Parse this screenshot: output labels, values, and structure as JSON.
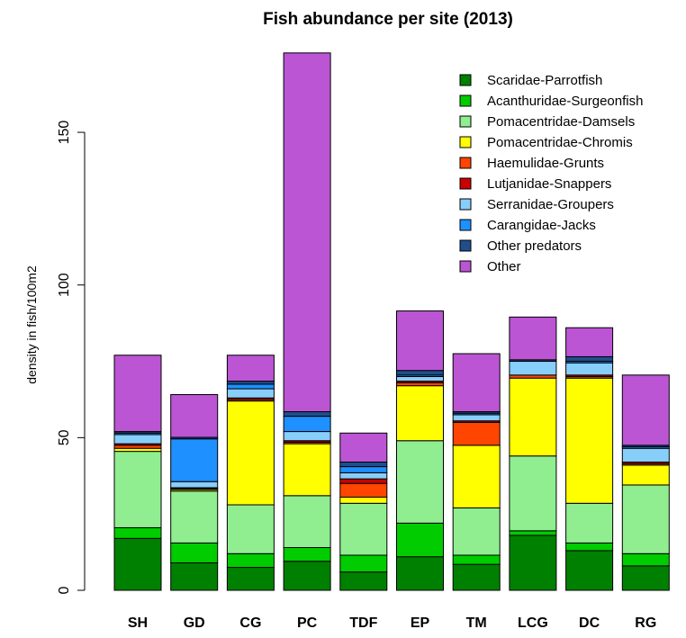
{
  "chart_data": {
    "type": "bar",
    "stacked": true,
    "title": "Fish abundance per site (2013)",
    "xlabel": "",
    "ylabel": "density in fish/100m2",
    "ylim": [
      0,
      180
    ],
    "yticks": [
      0,
      50,
      100,
      150
    ],
    "grid": false,
    "legend_position": "top-right",
    "categories": [
      "SH",
      "GD",
      "CG",
      "PC",
      "TDF",
      "EP",
      "TM",
      "LCG",
      "DC",
      "RG"
    ],
    "series": [
      {
        "name": "Scaridae-Parrotfish",
        "color": "#008000",
        "values": [
          17,
          9,
          7.5,
          9.5,
          6,
          11,
          8.5,
          18,
          13,
          8
        ]
      },
      {
        "name": "Acanthuridae-Surgeonfish",
        "color": "#00cc00",
        "values": [
          3.5,
          6.5,
          4.5,
          4.5,
          5.5,
          11,
          3,
          1.5,
          2.5,
          4
        ]
      },
      {
        "name": "Pomacentridae-Damsels",
        "color": "#90ee90",
        "values": [
          25,
          17,
          16,
          17,
          17,
          27,
          15.5,
          24.5,
          13,
          22.5
        ]
      },
      {
        "name": "Pomacentridae-Chromis",
        "color": "#ffff00",
        "values": [
          1,
          0.5,
          34,
          17,
          2,
          18,
          20.5,
          25.5,
          41,
          6.5
        ]
      },
      {
        "name": "Haemulidae-Grunts",
        "color": "#ff4500",
        "values": [
          1,
          0.3,
          0.5,
          0.5,
          4.5,
          1,
          7.5,
          1,
          0.5,
          0.5
        ]
      },
      {
        "name": "Lutjanidae-Snappers",
        "color": "#cc0000",
        "values": [
          0.5,
          0.3,
          0.5,
          0.5,
          1.5,
          0.5,
          0.5,
          0,
          0.5,
          0.5
        ]
      },
      {
        "name": "Serranidae-Groupers",
        "color": "#87cefa",
        "values": [
          3,
          2,
          3,
          3,
          2,
          1.5,
          2,
          4.5,
          4,
          4.5
        ]
      },
      {
        "name": "Carangidae-Jacks",
        "color": "#1e90ff",
        "values": [
          0.5,
          14,
          1.5,
          5,
          2,
          0.5,
          0.5,
          0,
          0.5,
          0.5
        ]
      },
      {
        "name": "Other predators",
        "color": "#1f4e8c",
        "values": [
          0.5,
          0.5,
          1,
          1.5,
          1.5,
          1.5,
          0.5,
          0.5,
          1.5,
          0.5
        ]
      },
      {
        "name": "Other",
        "color": "#bb55d4",
        "values": [
          25,
          14,
          8.5,
          117.5,
          9.5,
          19.5,
          19,
          14,
          9.5,
          23
        ]
      }
    ]
  }
}
